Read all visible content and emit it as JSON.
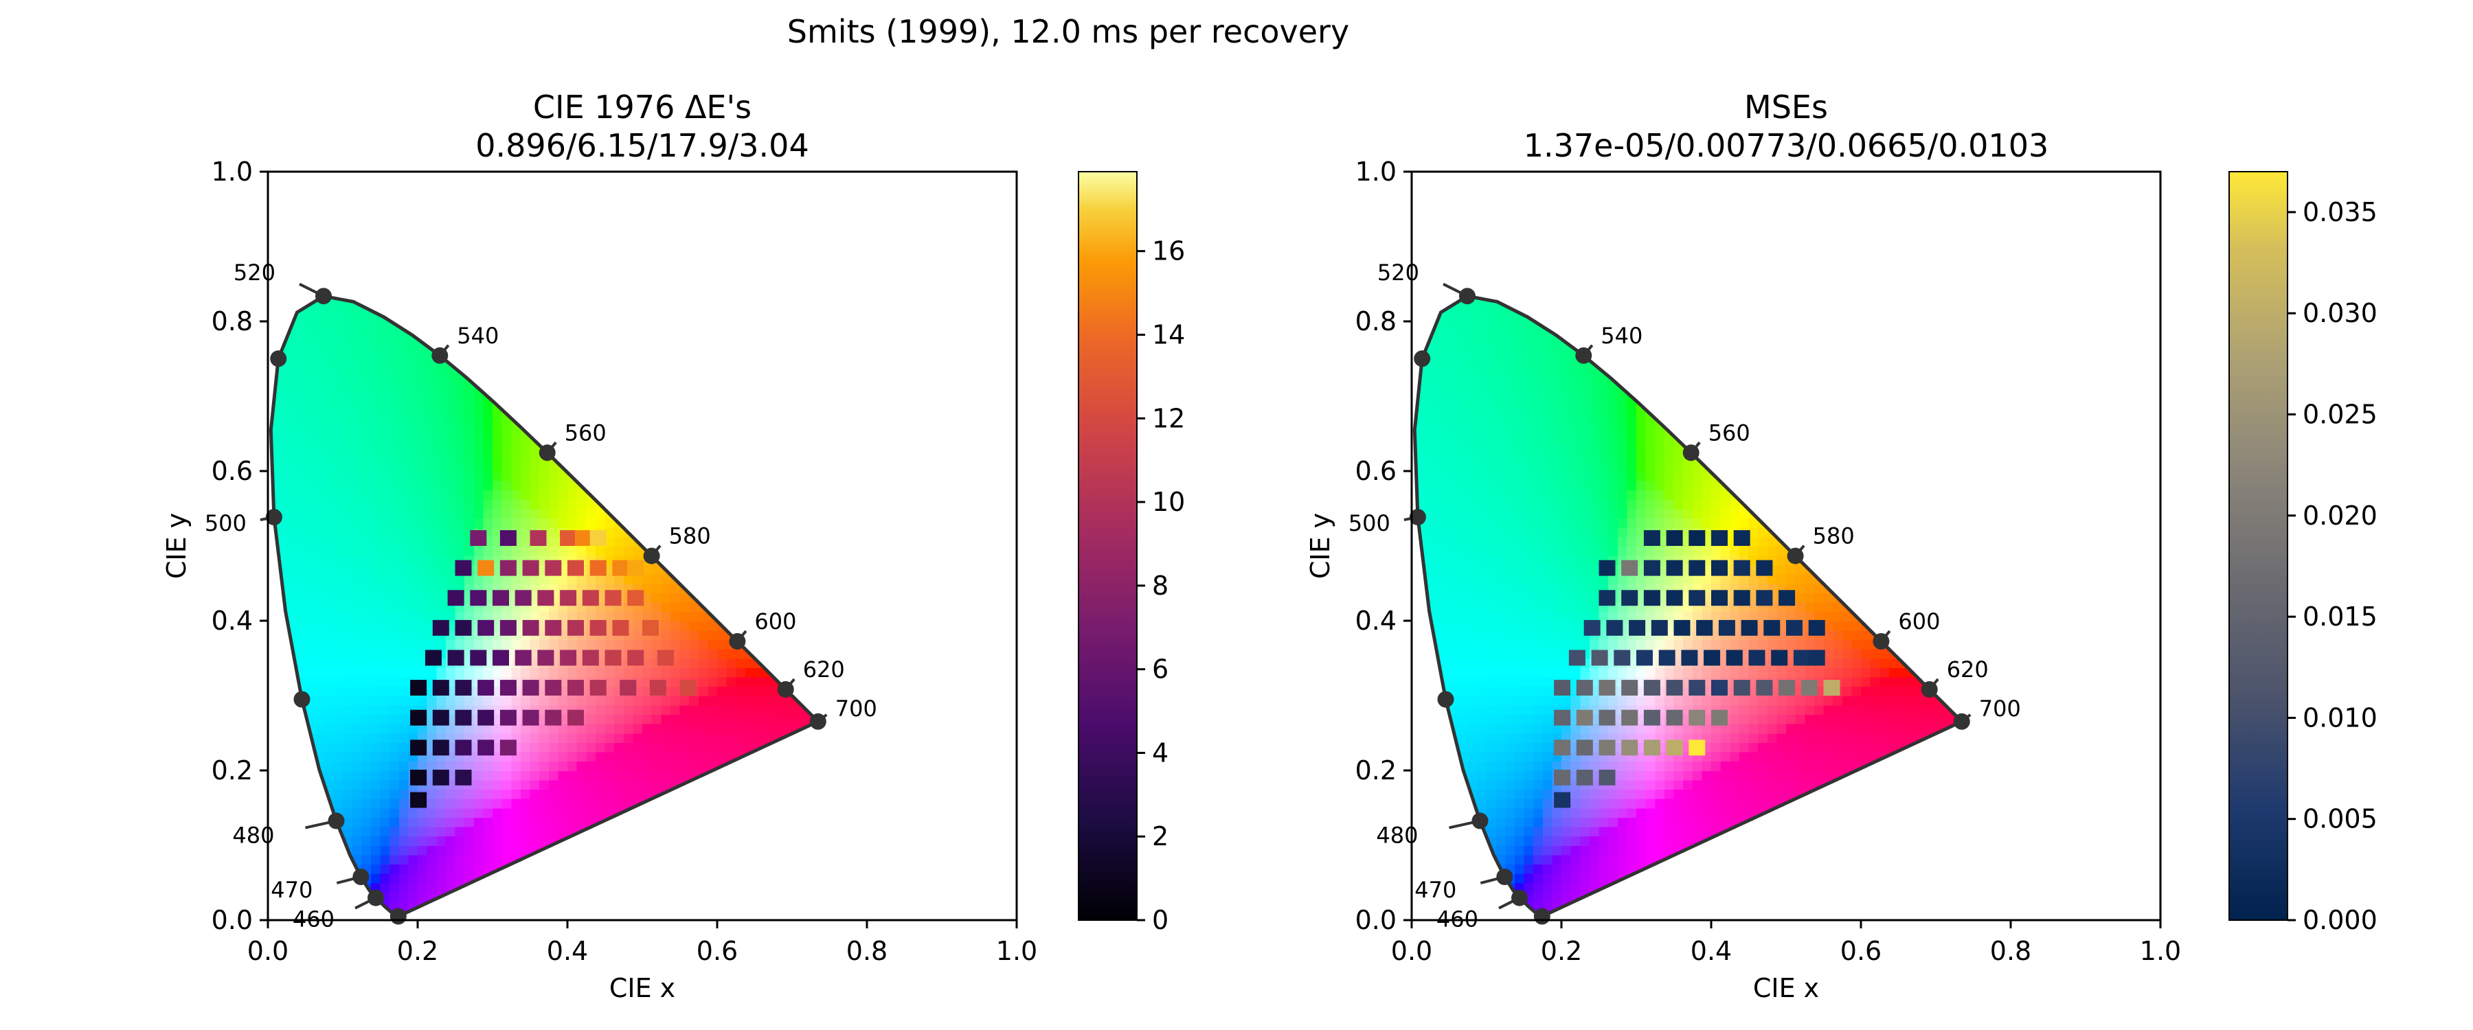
{
  "figure": {
    "suptitle": "Smits (1999), 12.0 ms per recovery"
  },
  "chart_data": [
    {
      "type": "heatmap",
      "title_line1": "CIE 1976 ΔE's",
      "title_line2": "0.896/6.15/17.9/3.04",
      "xlabel": "CIE x",
      "ylabel": "CIE y",
      "xlim": [
        0,
        1
      ],
      "ylim": [
        0,
        1
      ],
      "xticks": [
        "0.0",
        "0.2",
        "0.4",
        "0.6",
        "0.8",
        "1.0"
      ],
      "yticks": [
        "0.0",
        "0.2",
        "0.4",
        "0.6",
        "0.8",
        "1.0"
      ],
      "colormap": "inferno",
      "colorbar": {
        "min": 0,
        "max": 17.9,
        "ticks": [
          "0",
          "2",
          "4",
          "6",
          "8",
          "10",
          "12",
          "14",
          "16"
        ]
      },
      "wavelength_labels": [
        "460",
        "470",
        "480",
        "500",
        "520",
        "540",
        "560",
        "580",
        "600",
        "620",
        "700"
      ],
      "heatmap_rows": [
        {
          "y": 0.5,
          "cells": [
            [
              0.27,
              7
            ],
            [
              0.31,
              5
            ],
            [
              0.35,
              10
            ],
            [
              0.39,
              13
            ],
            [
              0.41,
              15
            ],
            [
              0.43,
              17
            ]
          ]
        },
        {
          "y": 0.46,
          "cells": [
            [
              0.25,
              4
            ],
            [
              0.28,
              15
            ],
            [
              0.31,
              8
            ],
            [
              0.34,
              9
            ],
            [
              0.37,
              10
            ],
            [
              0.4,
              12
            ],
            [
              0.43,
              14
            ],
            [
              0.46,
              15
            ],
            [
              0.48,
              16
            ]
          ]
        },
        {
          "y": 0.42,
          "cells": [
            [
              0.24,
              4
            ],
            [
              0.27,
              5
            ],
            [
              0.3,
              6
            ],
            [
              0.33,
              7
            ],
            [
              0.36,
              9
            ],
            [
              0.39,
              10
            ],
            [
              0.42,
              11
            ],
            [
              0.45,
              12
            ],
            [
              0.48,
              13
            ]
          ]
        },
        {
          "y": 0.38,
          "cells": [
            [
              0.22,
              3
            ],
            [
              0.25,
              3
            ],
            [
              0.28,
              5
            ],
            [
              0.31,
              6
            ],
            [
              0.34,
              8
            ],
            [
              0.37,
              9
            ],
            [
              0.4,
              10
            ],
            [
              0.43,
              11
            ],
            [
              0.46,
              12
            ],
            [
              0.5,
              13
            ]
          ]
        },
        {
          "y": 0.34,
          "cells": [
            [
              0.21,
              2
            ],
            [
              0.24,
              3
            ],
            [
              0.27,
              4
            ],
            [
              0.3,
              5
            ],
            [
              0.33,
              7
            ],
            [
              0.36,
              8
            ],
            [
              0.39,
              9
            ],
            [
              0.42,
              10
            ],
            [
              0.45,
              11
            ],
            [
              0.48,
              11
            ],
            [
              0.52,
              12
            ]
          ]
        },
        {
          "y": 0.3,
          "cells": [
            [
              0.19,
              1
            ],
            [
              0.22,
              2
            ],
            [
              0.25,
              3
            ],
            [
              0.28,
              5
            ],
            [
              0.31,
              6
            ],
            [
              0.34,
              7
            ],
            [
              0.37,
              8
            ],
            [
              0.4,
              9
            ],
            [
              0.43,
              10
            ],
            [
              0.47,
              10
            ],
            [
              0.51,
              11
            ],
            [
              0.55,
              12
            ]
          ]
        },
        {
          "y": 0.26,
          "cells": [
            [
              0.19,
              1
            ],
            [
              0.22,
              2
            ],
            [
              0.25,
              3
            ],
            [
              0.28,
              4
            ],
            [
              0.31,
              6
            ],
            [
              0.34,
              7
            ],
            [
              0.37,
              8
            ],
            [
              0.4,
              9
            ]
          ]
        },
        {
          "y": 0.22,
          "cells": [
            [
              0.19,
              1
            ],
            [
              0.22,
              2
            ],
            [
              0.25,
              4
            ],
            [
              0.28,
              5
            ],
            [
              0.31,
              7
            ]
          ]
        },
        {
          "y": 0.18,
          "cells": [
            [
              0.19,
              1
            ],
            [
              0.22,
              2
            ],
            [
              0.25,
              3
            ]
          ]
        },
        {
          "y": 0.15,
          "cells": [
            [
              0.19,
              1
            ]
          ]
        }
      ]
    },
    {
      "type": "heatmap",
      "title_line1": "MSEs",
      "title_line2": "1.37e-05/0.00773/0.0665/0.0103",
      "xlabel": "CIE x",
      "ylabel": "CIE y",
      "xlim": [
        0,
        1
      ],
      "ylim": [
        0,
        1
      ],
      "xticks": [
        "0.0",
        "0.2",
        "0.4",
        "0.6",
        "0.8",
        "1.0"
      ],
      "yticks": [
        "0.0",
        "0.2",
        "0.4",
        "0.6",
        "0.8",
        "1.0"
      ],
      "colormap": "cividis",
      "colorbar": {
        "min": 0,
        "max": 0.037,
        "ticks": [
          "0.000",
          "0.005",
          "0.010",
          "0.015",
          "0.020",
          "0.025",
          "0.030",
          "0.035"
        ]
      },
      "wavelength_labels": [
        "460",
        "470",
        "480",
        "500",
        "520",
        "540",
        "560",
        "580",
        "600",
        "620",
        "700"
      ],
      "heatmap_rows": [
        {
          "y": 0.5,
          "cells": [
            [
              0.31,
              0.002
            ],
            [
              0.34,
              0.001
            ],
            [
              0.37,
              0.001
            ],
            [
              0.4,
              0.002
            ],
            [
              0.43,
              0.002
            ]
          ]
        },
        {
          "y": 0.46,
          "cells": [
            [
              0.25,
              0.002
            ],
            [
              0.28,
              0.019
            ],
            [
              0.31,
              0.003
            ],
            [
              0.34,
              0.002
            ],
            [
              0.37,
              0.002
            ],
            [
              0.4,
              0.002
            ],
            [
              0.43,
              0.003
            ],
            [
              0.46,
              0.002
            ]
          ]
        },
        {
          "y": 0.42,
          "cells": [
            [
              0.25,
              0.003
            ],
            [
              0.28,
              0.003
            ],
            [
              0.31,
              0.002
            ],
            [
              0.34,
              0.002
            ],
            [
              0.37,
              0.003
            ],
            [
              0.4,
              0.002
            ],
            [
              0.43,
              0.002
            ],
            [
              0.46,
              0.003
            ],
            [
              0.49,
              0.002
            ]
          ]
        },
        {
          "y": 0.38,
          "cells": [
            [
              0.23,
              0.006
            ],
            [
              0.26,
              0.004
            ],
            [
              0.29,
              0.003
            ],
            [
              0.32,
              0.003
            ],
            [
              0.35,
              0.002
            ],
            [
              0.38,
              0.002
            ],
            [
              0.41,
              0.003
            ],
            [
              0.44,
              0.002
            ],
            [
              0.47,
              0.002
            ],
            [
              0.5,
              0.003
            ],
            [
              0.53,
              0.002
            ]
          ]
        },
        {
          "y": 0.34,
          "cells": [
            [
              0.21,
              0.01
            ],
            [
              0.24,
              0.012
            ],
            [
              0.27,
              0.008
            ],
            [
              0.3,
              0.005
            ],
            [
              0.33,
              0.004
            ],
            [
              0.36,
              0.003
            ],
            [
              0.39,
              0.002
            ],
            [
              0.42,
              0.002
            ],
            [
              0.45,
              0.003
            ],
            [
              0.48,
              0.002
            ],
            [
              0.51,
              0.004
            ],
            [
              0.53,
              0.003
            ]
          ]
        },
        {
          "y": 0.3,
          "cells": [
            [
              0.19,
              0.013
            ],
            [
              0.22,
              0.015
            ],
            [
              0.25,
              0.018
            ],
            [
              0.28,
              0.016
            ],
            [
              0.31,
              0.012
            ],
            [
              0.34,
              0.01
            ],
            [
              0.37,
              0.008
            ],
            [
              0.4,
              0.006
            ],
            [
              0.43,
              0.01
            ],
            [
              0.46,
              0.012
            ],
            [
              0.49,
              0.018
            ],
            [
              0.52,
              0.02
            ],
            [
              0.55,
              0.03
            ]
          ]
        },
        {
          "y": 0.26,
          "cells": [
            [
              0.19,
              0.015
            ],
            [
              0.22,
              0.02
            ],
            [
              0.25,
              0.016
            ],
            [
              0.28,
              0.018
            ],
            [
              0.31,
              0.014
            ],
            [
              0.34,
              0.016
            ],
            [
              0.37,
              0.022
            ],
            [
              0.4,
              0.02
            ]
          ]
        },
        {
          "y": 0.22,
          "cells": [
            [
              0.19,
              0.018
            ],
            [
              0.22,
              0.016
            ],
            [
              0.25,
              0.02
            ],
            [
              0.28,
              0.024
            ],
            [
              0.31,
              0.027
            ],
            [
              0.34,
              0.03
            ],
            [
              0.37,
              0.037
            ]
          ]
        },
        {
          "y": 0.18,
          "cells": [
            [
              0.19,
              0.016
            ],
            [
              0.22,
              0.014
            ],
            [
              0.25,
              0.012
            ]
          ]
        },
        {
          "y": 0.15,
          "cells": [
            [
              0.19,
              0.004
            ]
          ]
        }
      ]
    }
  ]
}
